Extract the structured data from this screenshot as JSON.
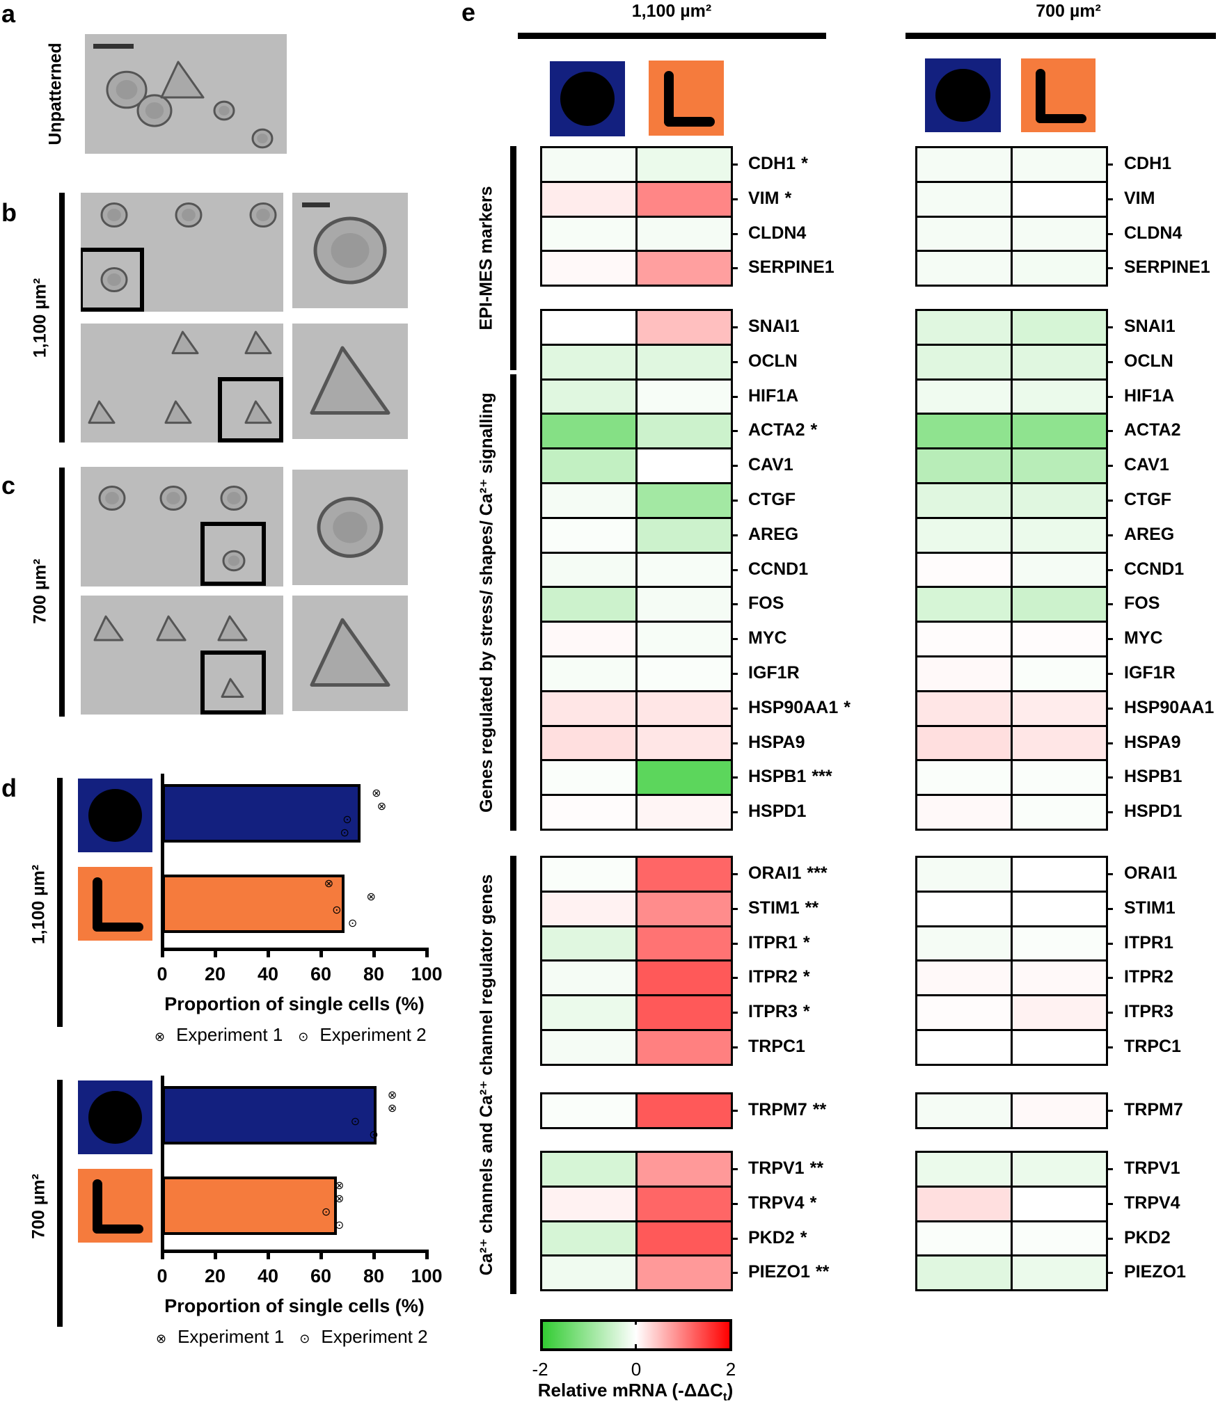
{
  "panels": {
    "a": {
      "label": "a",
      "row_label": "Unpatterned"
    },
    "b": {
      "label": "b",
      "row_label": "1,100 µm²"
    },
    "c": {
      "label": "c",
      "row_label": "700 µm²"
    },
    "d": {
      "label": "d"
    },
    "e": {
      "label": "e"
    }
  },
  "colors": {
    "circle_pattern": "#13207f",
    "l_pattern": "#f57b3d",
    "low": "#33cc33",
    "mid": "#ffffff",
    "high": "#ff0000"
  },
  "chart_data": [
    {
      "type": "bar",
      "orientation": "horizontal",
      "group_label": "1,100 µm²",
      "categories": [
        "circle",
        "L-shape"
      ],
      "values": [
        75,
        69
      ],
      "points": {
        "Experiment 1": [
          [
            81,
            83
          ],
          [
            63,
            79
          ]
        ],
        "Experiment 2": [
          [
            70,
            69
          ],
          [
            66,
            72
          ]
        ]
      },
      "xlabel": "Proportion of single cells (%)",
      "xlim": [
        0,
        100
      ],
      "xticks": [
        "0",
        "20",
        "40",
        "60",
        "80",
        "100"
      ],
      "legend": [
        "Experiment 1",
        "Experiment 2"
      ],
      "legend_placement": "bottom"
    },
    {
      "type": "bar",
      "orientation": "horizontal",
      "group_label": "700 µm²",
      "categories": [
        "circle",
        "L-shape"
      ],
      "values": [
        81,
        66
      ],
      "points": {
        "Experiment 1": [
          [
            87,
            87
          ],
          [
            67,
            67
          ]
        ],
        "Experiment 2": [
          [
            73,
            80
          ],
          [
            62,
            67
          ]
        ]
      },
      "xlabel": "Proportion of single cells (%)",
      "xlim": [
        0,
        100
      ],
      "xticks": [
        "0",
        "20",
        "40",
        "60",
        "80",
        "100"
      ],
      "legend": [
        "Experiment 1",
        "Experiment 2"
      ],
      "legend_placement": "bottom"
    },
    {
      "type": "heatmap",
      "column_groups": [
        "1,100 µm²",
        "700 µm²"
      ],
      "columns": [
        "circle",
        "L-shape"
      ],
      "row_groups": [
        {
          "label": "EPI-MES markers",
          "rows": [
            {
              "gene": "CDH1",
              "sig": "*",
              "v1100": [
                -0.1,
                -0.2
              ],
              "v700": [
                -0.1,
                -0.1
              ]
            },
            {
              "gene": "VIM",
              "sig": "*",
              "v1100": [
                0.15,
                0.95
              ],
              "v700": [
                -0.1,
                0.0
              ]
            },
            {
              "gene": "CLDN4",
              "sig": "",
              "v1100": [
                -0.08,
                -0.1
              ],
              "v700": [
                -0.1,
                -0.1
              ]
            },
            {
              "gene": "SERPINE1",
              "sig": "",
              "v1100": [
                0.05,
                0.75
              ],
              "v700": [
                -0.1,
                -0.12
              ]
            }
          ]
        },
        {
          "label": "Genes regulated by stress/ shapes/ Ca²⁺ signalling",
          "rows": [
            {
              "gene": "SNAI1",
              "sig": "",
              "v1100": [
                0.0,
                0.5
              ],
              "v700": [
                -0.3,
                -0.4
              ]
            },
            {
              "gene": "OCLN",
              "sig": "",
              "v1100": [
                -0.3,
                -0.3
              ],
              "v700": [
                -0.3,
                -0.3
              ]
            },
            {
              "gene": "HIF1A",
              "sig": "",
              "v1100": [
                -0.3,
                -0.08
              ],
              "v700": [
                -0.15,
                -0.2
              ]
            },
            {
              "gene": "ACTA2",
              "sig": "*",
              "v1100": [
                -1.2,
                -0.5
              ],
              "v700": [
                -1.1,
                -1.1
              ]
            },
            {
              "gene": "CAV1",
              "sig": "",
              "v1100": [
                -0.6,
                0.0
              ],
              "v700": [
                -0.7,
                -0.7
              ]
            },
            {
              "gene": "CTGF",
              "sig": "",
              "v1100": [
                -0.1,
                -0.9
              ],
              "v700": [
                -0.3,
                -0.3
              ]
            },
            {
              "gene": "AREG",
              "sig": "",
              "v1100": [
                -0.05,
                -0.5
              ],
              "v700": [
                -0.2,
                -0.2
              ]
            },
            {
              "gene": "CCND1",
              "sig": "",
              "v1100": [
                -0.1,
                -0.08
              ],
              "v700": [
                0.02,
                -0.1
              ]
            },
            {
              "gene": "FOS",
              "sig": "",
              "v1100": [
                -0.5,
                -0.1
              ],
              "v700": [
                -0.4,
                -0.5
              ]
            },
            {
              "gene": "MYC",
              "sig": "",
              "v1100": [
                0.05,
                -0.08
              ],
              "v700": [
                0.02,
                0.02
              ]
            },
            {
              "gene": "IGF1R",
              "sig": "",
              "v1100": [
                -0.08,
                -0.05
              ],
              "v700": [
                0.05,
                -0.05
              ]
            },
            {
              "gene": "HSP90AA1",
              "sig": "*",
              "v1100": [
                0.2,
                0.2
              ],
              "v700": [
                0.2,
                0.15
              ]
            },
            {
              "gene": "HSPA9",
              "sig": "",
              "v1100": [
                0.25,
                0.2
              ],
              "v700": [
                0.25,
                0.2
              ]
            },
            {
              "gene": "HSPB1",
              "sig": "***",
              "v1100": [
                -0.05,
                -1.6
              ],
              "v700": [
                -0.05,
                -0.05
              ]
            },
            {
              "gene": "HSPD1",
              "sig": "",
              "v1100": [
                0.02,
                0.08
              ],
              "v700": [
                0.05,
                -0.05
              ]
            }
          ]
        },
        {
          "label": "Ca²⁺ channels and Ca²⁺ channel regulator genes",
          "rows": [
            {
              "gene": "ORAI1",
              "sig": "***",
              "v1100": [
                -0.05,
                1.2
              ],
              "v700": [
                -0.1,
                0.0
              ]
            },
            {
              "gene": "STIM1",
              "sig": "**",
              "v1100": [
                0.1,
                0.9
              ],
              "v700": [
                0.0,
                0.0
              ]
            },
            {
              "gene": "ITPR1",
              "sig": "*",
              "v1100": [
                -0.3,
                1.1
              ],
              "v700": [
                -0.1,
                -0.05
              ]
            },
            {
              "gene": "ITPR2",
              "sig": "*",
              "v1100": [
                -0.1,
                1.3
              ],
              "v700": [
                0.05,
                0.05
              ]
            },
            {
              "gene": "ITPR3",
              "sig": "*",
              "v1100": [
                -0.2,
                1.3
              ],
              "v700": [
                0.02,
                0.1
              ]
            },
            {
              "gene": "TRPC1",
              "sig": "",
              "v1100": [
                -0.1,
                1.0
              ],
              "v700": [
                0.0,
                0.0
              ]
            },
            {
              "gene": "TRPM7",
              "sig": "**",
              "v1100": [
                -0.05,
                1.3
              ],
              "v700": [
                -0.1,
                0.05
              ]
            },
            {
              "gene": "TRPV1",
              "sig": "**",
              "v1100": [
                -0.4,
                0.8
              ],
              "v700": [
                -0.2,
                -0.2
              ]
            },
            {
              "gene": "TRPV4",
              "sig": "*",
              "v1100": [
                0.1,
                1.2
              ],
              "v700": [
                0.25,
                0.0
              ]
            },
            {
              "gene": "PKD2",
              "sig": "*",
              "v1100": [
                -0.4,
                1.3
              ],
              "v700": [
                -0.05,
                -0.05
              ]
            },
            {
              "gene": "PIEZO1",
              "sig": "**",
              "v1100": [
                -0.15,
                0.8
              ],
              "v700": [
                -0.3,
                -0.2
              ]
            }
          ]
        }
      ],
      "colorbar": {
        "min": -2,
        "max": 2,
        "ticks": [
          "-2",
          "0",
          "2"
        ],
        "label_main": "Relative mRNA (-ΔΔC",
        "label_sub": "t",
        "label_end": ")"
      }
    }
  ]
}
